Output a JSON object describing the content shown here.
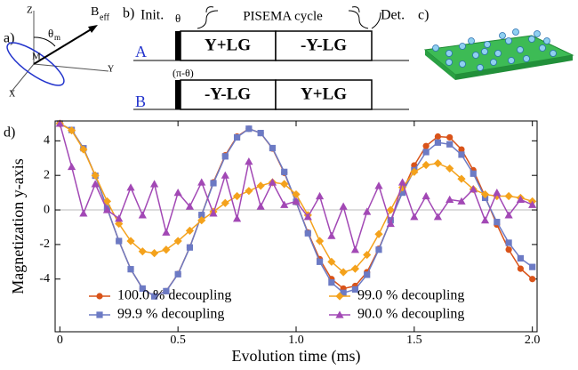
{
  "panels": {
    "a": {
      "label": "a)",
      "z": "Z",
      "b_main": "B",
      "b_sub": "eff",
      "theta": "θ",
      "theta_sub": "m",
      "m": "M",
      "y": "Y",
      "x": "X"
    },
    "b": {
      "label": "b)",
      "init": "Init.",
      "theta": "θ",
      "cycle": "PISEMA cycle",
      "det": "Det.",
      "row_a": "A",
      "row_a_box1": "Y+LG",
      "row_a_box2": "-Y-LG",
      "row_b": "B",
      "row_b_phase": "(π-θ)",
      "row_b_box1": "-Y-LG",
      "row_b_box2": "Y+LG"
    },
    "c": {
      "label": "c)"
    },
    "d": {
      "label": "d)"
    }
  },
  "chart_data": {
    "type": "line",
    "xlabel": "Evolution time (ms)",
    "ylabel": "Magnetization y-axis",
    "x": [
      0,
      0.05,
      0.1,
      0.15,
      0.2,
      0.25,
      0.3,
      0.35,
      0.4,
      0.45,
      0.5,
      0.55,
      0.6,
      0.65,
      0.7,
      0.75,
      0.8,
      0.85,
      0.9,
      0.95,
      1.0,
      1.05,
      1.1,
      1.15,
      1.2,
      1.25,
      1.3,
      1.35,
      1.4,
      1.45,
      1.5,
      1.55,
      1.6,
      1.65,
      1.7,
      1.75,
      1.8,
      1.85,
      1.9,
      1.95,
      2.0
    ],
    "xlim": [
      -0.02,
      2.02
    ],
    "ylim": [
      -7.05,
      5.15
    ],
    "xticks": [
      0,
      0.5,
      {
        "value": 1,
        "label": "1.0"
      },
      1.5,
      {
        "value": 2,
        "label": "2.0"
      }
    ],
    "yticks": [
      -4,
      -2,
      0,
      2,
      4
    ],
    "zero_line": true,
    "series": [
      {
        "name": "100.0 % decoupling",
        "color": "#d95319",
        "marker": "circle",
        "values": [
          5.0,
          4.63,
          3.57,
          1.98,
          0.1,
          -1.8,
          -3.43,
          -4.55,
          -4.99,
          -4.7,
          -3.7,
          -2.16,
          -0.29,
          1.6,
          3.16,
          4.25,
          4.7,
          4.45,
          3.55,
          2.15,
          0.45,
          -1.3,
          -2.85,
          -4.0,
          -4.55,
          -4.4,
          -3.6,
          -2.25,
          -0.62,
          1.07,
          2.58,
          3.7,
          4.25,
          4.2,
          3.5,
          2.3,
          0.77,
          -0.85,
          -2.3,
          -3.4,
          -4.0
        ]
      },
      {
        "name": "99.9 % decoupling",
        "color": "#6c7ac4",
        "marker": "square",
        "values": [
          5.0,
          4.63,
          3.57,
          1.98,
          0.1,
          -1.8,
          -3.43,
          -4.55,
          -5.0,
          -4.7,
          -3.72,
          -2.17,
          -0.29,
          1.55,
          3.1,
          4.2,
          4.7,
          4.45,
          3.58,
          2.2,
          0.47,
          -1.35,
          -3.0,
          -4.2,
          -4.8,
          -4.6,
          -3.75,
          -2.3,
          -0.6,
          1.0,
          2.3,
          3.35,
          3.9,
          3.8,
          3.2,
          2.1,
          0.7,
          -0.7,
          -1.9,
          -2.8,
          -3.3
        ]
      },
      {
        "name": "99.0 % decoupling",
        "color": "#f4a21c",
        "marker": "diamond",
        "values": [
          5.0,
          4.6,
          3.5,
          2.0,
          0.5,
          -0.8,
          -1.8,
          -2.4,
          -2.5,
          -2.3,
          -1.8,
          -1.2,
          -0.6,
          -0.1,
          0.4,
          0.8,
          1.1,
          1.4,
          1.6,
          1.5,
          0.9,
          -0.3,
          -1.8,
          -3.0,
          -3.6,
          -3.4,
          -2.6,
          -1.4,
          0.0,
          1.3,
          2.2,
          2.6,
          2.7,
          2.4,
          1.8,
          1.2,
          0.9,
          0.8,
          0.8,
          0.7,
          0.5
        ]
      },
      {
        "name": "90.0 % decoupling",
        "color": "#a248b5",
        "marker": "triangle",
        "values": [
          5.0,
          2.5,
          -0.2,
          1.5,
          0.0,
          -0.5,
          1.3,
          -0.3,
          1.5,
          -1.3,
          1.0,
          0.2,
          1.6,
          -0.2,
          2.0,
          -0.5,
          2.8,
          0.2,
          1.6,
          0.3,
          0.5,
          -0.4,
          0.8,
          -1.5,
          0.2,
          -2.3,
          -0.1,
          1.4,
          -0.8,
          1.6,
          -0.4,
          0.8,
          -0.4,
          0.6,
          0.5,
          1.2,
          -0.6,
          1.0,
          -0.3,
          0.6,
          0.3
        ]
      }
    ]
  }
}
